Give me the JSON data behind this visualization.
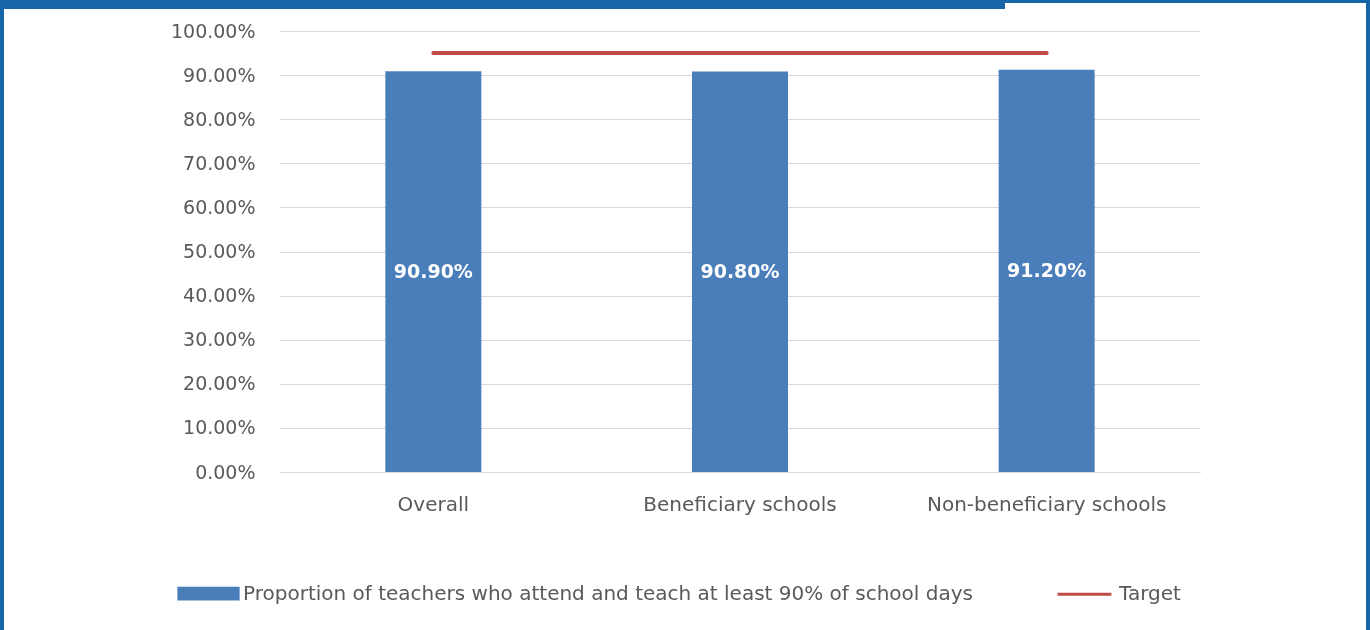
{
  "chart_data": {
    "type": "bar",
    "categories": [
      "Overall",
      "Beneficiary schools",
      "Non-beneficiary schools"
    ],
    "series": [
      {
        "name": "Proportion of teachers who attend and teach at least 90% of school days",
        "color": "#4a7ebb",
        "values": [
          90.9,
          90.8,
          91.2
        ],
        "value_labels": [
          "90.90%",
          "90.80%",
          "91.20%"
        ]
      },
      {
        "name": "Target",
        "type": "line",
        "color": "#be4b48",
        "values": [
          95,
          95,
          95
        ]
      }
    ],
    "ylim": [
      0,
      100
    ],
    "yticks": [
      {
        "value": 0,
        "label": "0.00%"
      },
      {
        "value": 10,
        "label": "10.00%"
      },
      {
        "value": 20,
        "label": "20.00%"
      },
      {
        "value": 30,
        "label": "30.00%"
      },
      {
        "value": 40,
        "label": "40.00%"
      },
      {
        "value": 50,
        "label": "50.00%"
      },
      {
        "value": 60,
        "label": "60.00%"
      },
      {
        "value": 70,
        "label": "70.00%"
      },
      {
        "value": 80,
        "label": "80.00%"
      },
      {
        "value": 90,
        "label": "90.00%"
      },
      {
        "value": 100,
        "label": "100.00%"
      }
    ],
    "grid": "y",
    "legend": "bottom"
  }
}
